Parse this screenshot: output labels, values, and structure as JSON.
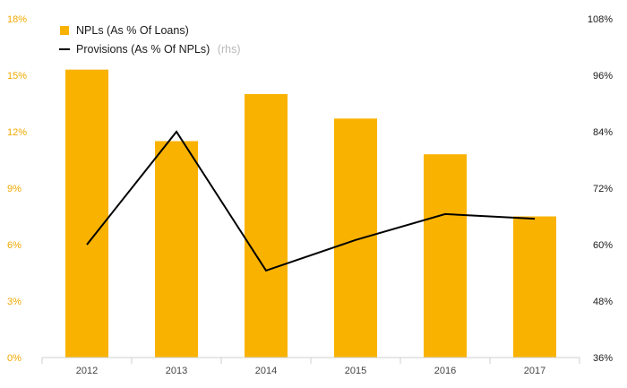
{
  "chart_data": {
    "type": "bar",
    "categories": [
      "2012",
      "2013",
      "2014",
      "2015",
      "2016",
      "2017"
    ],
    "series": [
      {
        "name": "NPLs (As % Of Loans)",
        "type": "bar",
        "axis": "left",
        "values": [
          15.3,
          11.5,
          14.0,
          12.7,
          10.8,
          7.5
        ]
      },
      {
        "name": "Provisions (As % Of NPLs)",
        "name_suffix": "(rhs)",
        "type": "line",
        "axis": "right",
        "values": [
          60,
          84,
          54.5,
          61,
          66.5,
          65.5
        ]
      }
    ],
    "y_left": {
      "ylim": [
        0,
        18
      ],
      "ticks": [
        "0%",
        "3%",
        "6%",
        "9%",
        "12%",
        "15%",
        "18%"
      ]
    },
    "y_right": {
      "ylim": [
        36,
        108
      ],
      "ticks": [
        "36%",
        "48%",
        "60%",
        "72%",
        "84%",
        "96%",
        "108%"
      ]
    },
    "legend_position": "top-left",
    "grid": false,
    "colors": {
      "bar": "#f9b200",
      "line": "#000000",
      "left_axis_text": "#f2a900",
      "right_axis_text": "#1a1a1a"
    }
  }
}
